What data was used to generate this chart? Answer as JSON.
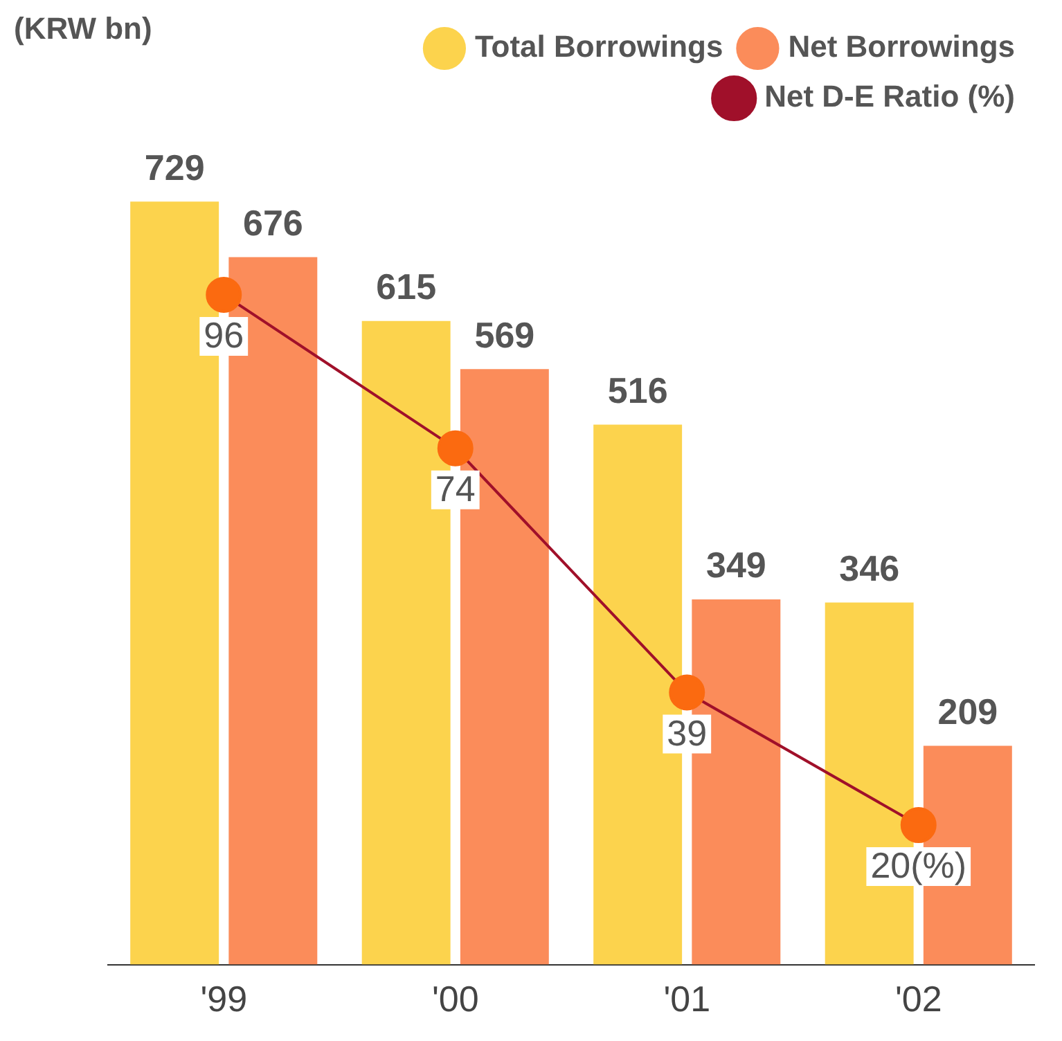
{
  "chart_data": {
    "type": "bar",
    "categories": [
      "'99",
      "'00",
      "'01",
      "'02"
    ],
    "annotations": [
      "(KRW bn)"
    ],
    "series": [
      {
        "name": "Total Borrowings",
        "color": "#fcd34d",
        "values": [
          729,
          615,
          516,
          346
        ],
        "value_labels": [
          "729",
          "615",
          "516",
          "346"
        ]
      },
      {
        "name": "Net Borrowings",
        "color": "#fb8c5a",
        "values": [
          676,
          569,
          349,
          209
        ],
        "value_labels": [
          "676",
          "569",
          "349",
          "209"
        ]
      },
      {
        "name": "Net D-E Ratio (%)",
        "type": "line",
        "axis": "y2",
        "color": "#a0102a",
        "values": [
          96,
          74,
          39,
          20
        ],
        "value_labels": [
          "96",
          "74",
          "39",
          "20(%)"
        ]
      }
    ],
    "tick_labels": "x",
    "grid": false,
    "legend": "top right",
    "marker": "circle"
  }
}
